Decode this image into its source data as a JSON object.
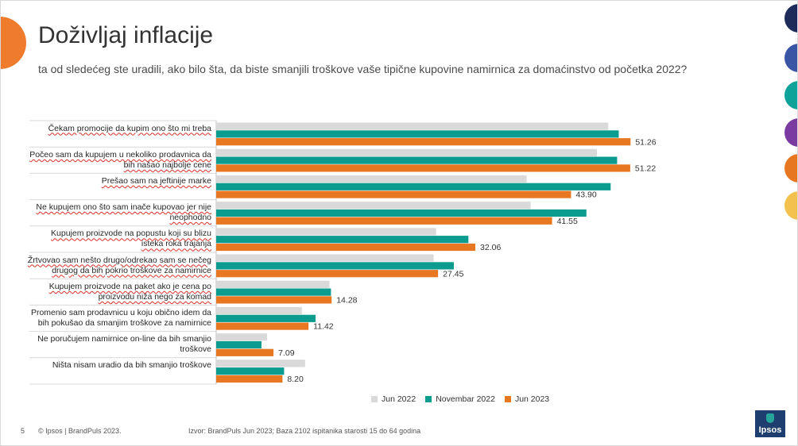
{
  "title": "Doživljaj inflacije",
  "subtitle": "ta od sledećeg ste uradili, ako bilo šta, da biste smanjili troškove vaše tipične kupovine namirnica za domaćinstvo od početka 2022?",
  "colors": {
    "jun2022": "#d9d9d9",
    "nov2022": "#0b9c8f",
    "jun2023": "#e87722",
    "accent_orange": "#ef7b2d",
    "dots": [
      "#1c2b5a",
      "#3b55a5",
      "#0ea39a",
      "#7b3aa0",
      "#e87722",
      "#f2c14e"
    ]
  },
  "chart_data": {
    "type": "bar",
    "orientation": "horizontal",
    "categories": [
      "Čekam promocije da kupim ono što mi treba",
      "Počeo sam da kupujem u nekoliko prodavnica da bih našao najbolje cene",
      "Prešao sam na jeftinije marke",
      "Ne kupujem ono što sam inače kupovao jer nije neophodno",
      "Kupujem proizvode na popustu koji su blizu isteka roka trajanja",
      "Žrtvovao sam nešto drugo/odrekao sam se nečeg drugog da bih pokrio troškove za namirnice",
      "Kupujem proizvode na paket ako je cena po proizvodu niža nego za komad",
      "Promenio sam prodavnicu u koju obično idem da bih pokušao da smanjim troškove za namirnice",
      "Ne poručujem namirnice on-line da bih smanjio troškove",
      "Ništa nisam uradio da bih smanjio troškove"
    ],
    "series": [
      {
        "name": "Jun 2022",
        "values": [
          48.5,
          47.1,
          38.4,
          38.9,
          27.2,
          26.9,
          14.0,
          10.6,
          6.3,
          11.0
        ]
      },
      {
        "name": "Novembar 2022",
        "values": [
          49.8,
          49.6,
          48.8,
          45.8,
          31.2,
          29.4,
          14.2,
          12.3,
          5.6,
          8.4
        ]
      },
      {
        "name": "Jun 2023",
        "values": [
          51.26,
          51.22,
          43.9,
          41.55,
          32.06,
          27.45,
          14.28,
          11.42,
          7.09,
          8.2
        ]
      }
    ],
    "data_labels": [
      "51.26",
      "51.22",
      "43.90",
      "41.55",
      "32.06",
      "27.45",
      "14.28",
      "11.42",
      "7.09",
      "8.20"
    ],
    "xlim": [
      0,
      60
    ],
    "legend": "bottom",
    "grid": false
  },
  "footer": {
    "page": "5",
    "copyright": "© Ipsos | BrandPuls 2023.",
    "source": "Izvor: BrandPuls Jun 2023; Baza 2102 ispitanika starosti 15 do 64 godina"
  },
  "logo_text": "Ipsos"
}
